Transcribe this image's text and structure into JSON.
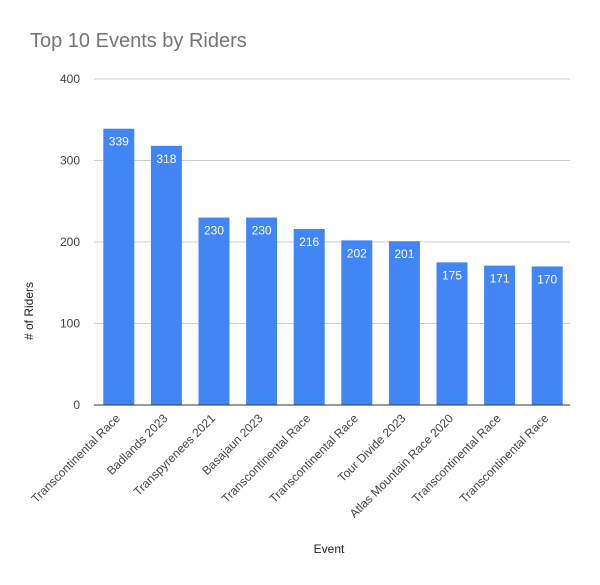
{
  "chart_data": {
    "type": "bar",
    "title": "Top 10 Events by Riders",
    "xlabel": "Event",
    "ylabel": "# of Riders",
    "ylim": [
      0,
      400
    ],
    "yticks": [
      0,
      100,
      200,
      300,
      400
    ],
    "grid": true,
    "legend": "none",
    "bar_color": "#4285f4",
    "categories": [
      "Transcontinental Race",
      "Badlands 2023",
      "Transpyrenees 2021",
      "Basajaun 2023",
      "Transcontinental Race",
      "Transcontinental Race",
      "Tour Divide 2023",
      "Atlas Mountain Race 2020",
      "Transcontinental Race",
      "Transcontinental Race"
    ],
    "values": [
      339,
      318,
      230,
      230,
      216,
      202,
      201,
      175,
      171,
      170
    ]
  }
}
